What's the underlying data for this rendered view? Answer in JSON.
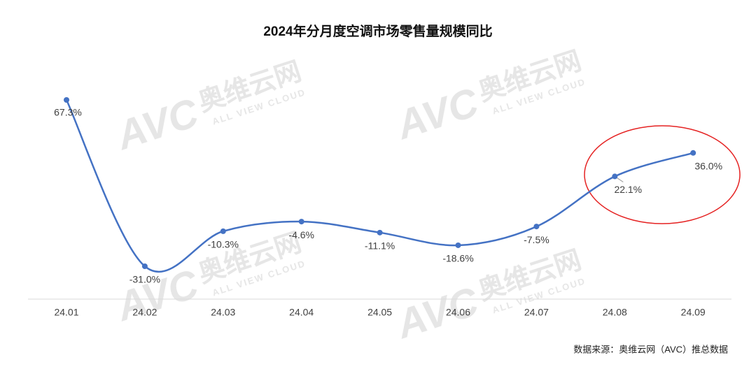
{
  "chart_data": {
    "type": "line",
    "title": "2024年分月度空调市场零售量规模同比",
    "categories": [
      "24.01",
      "24.02",
      "24.03",
      "24.04",
      "24.05",
      "24.06",
      "24.07",
      "24.08",
      "24.09"
    ],
    "series": [
      {
        "color": "#4472c4",
        "values": [
          67.3,
          -31.0,
          -10.3,
          -4.6,
          -11.1,
          -18.6,
          -7.5,
          22.1,
          36.0
        ],
        "value_labels": [
          "67.3%",
          "-31.0%",
          "-10.3%",
          "-4.6%",
          "-11.1%",
          "-18.6%",
          "-7.5%",
          "22.1%",
          "36.0%"
        ]
      }
    ],
    "watermark": {
      "logo": "AVC",
      "name": "奥维云网",
      "tagline": "ALL VIEW CLOUD"
    },
    "source": "数据来源：奥维云网（AVC）推总数据"
  }
}
